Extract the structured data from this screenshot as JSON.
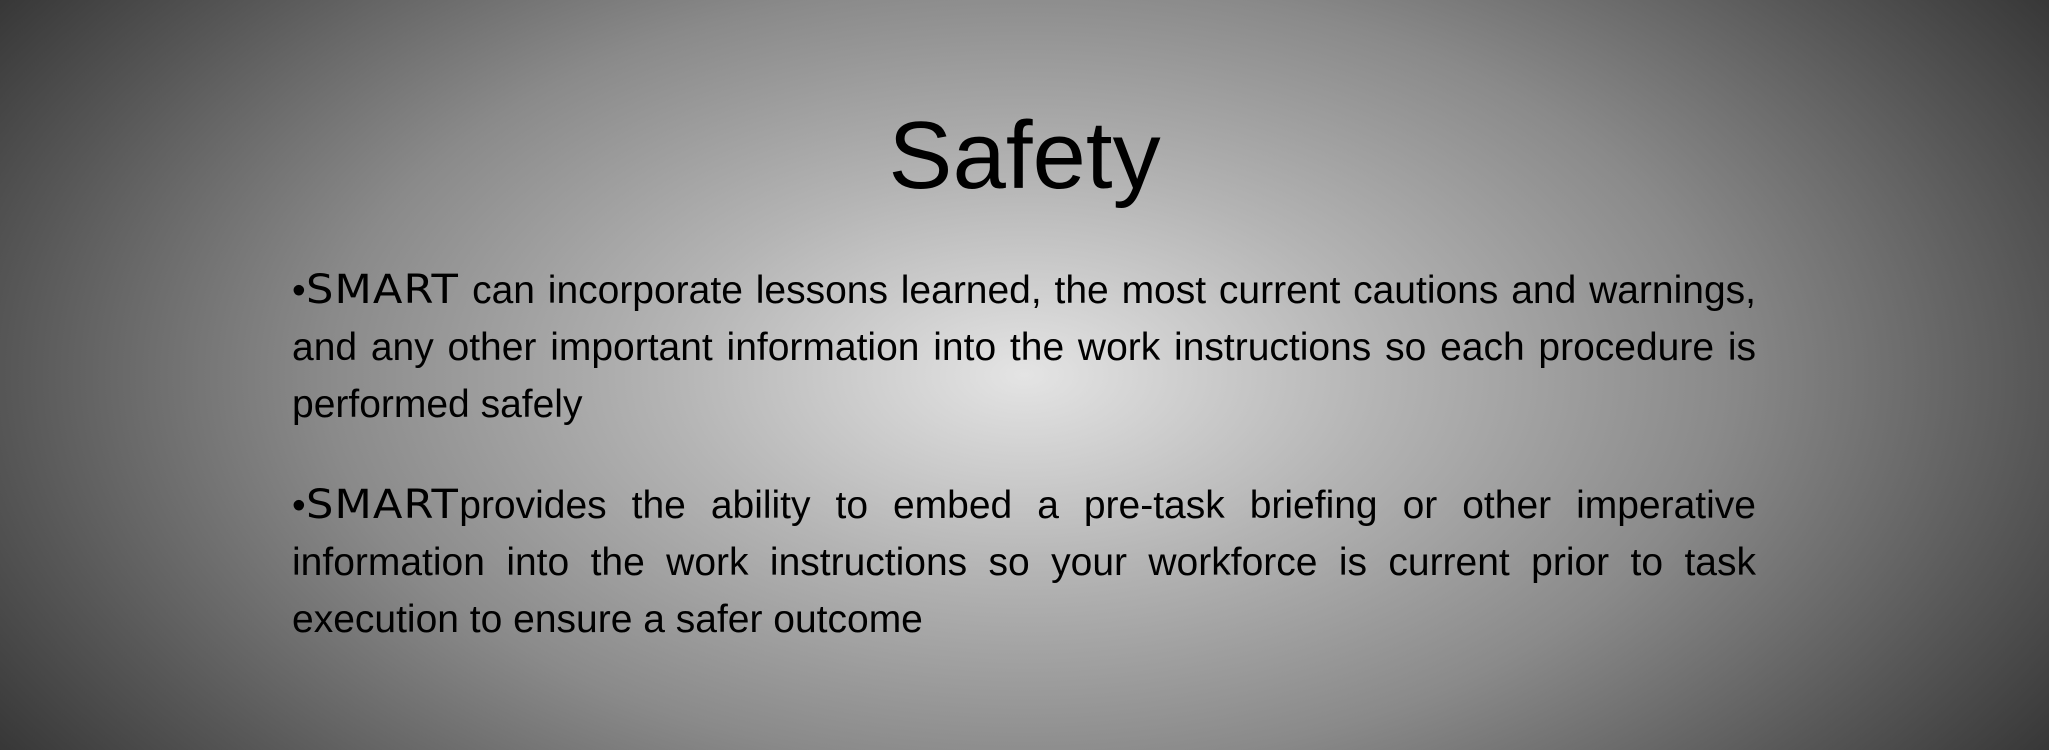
{
  "slide": {
    "title": "Safety",
    "bullets": [
      {
        "marker": "•",
        "brand": "SMART",
        "text": " can incorporate lessons learned, the most current cautions and warnings, and any other important information into the work instructions so each procedure is performed safely"
      },
      {
        "marker": "•",
        "brand": "SMART",
        "text": "provides the ability to embed a pre-task briefing or other imperative information into the work instructions so your workforce is current prior to task execution to ensure a safer outcome"
      }
    ]
  }
}
